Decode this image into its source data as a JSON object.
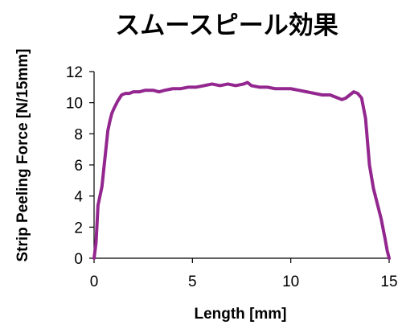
{
  "chart_data": {
    "type": "line",
    "title": "スムースピール効果",
    "xlabel": "Length [mm]",
    "ylabel": "Strip Peeling Force [N/15mm]",
    "xlim": [
      0,
      15
    ],
    "ylim": [
      0,
      12
    ],
    "x_ticks": [
      0,
      5,
      10,
      15
    ],
    "y_ticks": [
      0,
      2,
      4,
      6,
      8,
      10,
      12
    ],
    "grid": false,
    "legend": "none",
    "line_color": "#93278F",
    "series": [
      {
        "x": [
          0,
          0.1,
          0.2,
          0.3,
          0.4,
          0.5,
          0.6,
          0.7,
          0.8,
          0.9,
          1.0,
          1.2,
          1.4,
          1.6,
          1.8,
          2.0,
          2.3,
          2.6,
          3.0,
          3.3,
          3.6,
          4.0,
          4.4,
          4.8,
          5.2,
          5.6,
          6.0,
          6.4,
          6.8,
          7.2,
          7.6,
          7.8,
          8.0,
          8.4,
          8.8,
          9.2,
          9.6,
          10.0,
          10.4,
          10.8,
          11.2,
          11.6,
          12.0,
          12.4,
          12.6,
          12.8,
          13.0,
          13.2,
          13.4,
          13.6,
          13.8,
          14.0,
          14.2,
          14.4,
          14.6,
          14.8,
          14.9,
          15.0
        ],
        "y": [
          0,
          1.0,
          3.4,
          4.0,
          4.6,
          5.8,
          7.0,
          8.2,
          8.8,
          9.3,
          9.6,
          10.1,
          10.5,
          10.6,
          10.6,
          10.7,
          10.7,
          10.8,
          10.8,
          10.7,
          10.8,
          10.9,
          10.9,
          11.0,
          11.0,
          11.1,
          11.2,
          11.1,
          11.2,
          11.1,
          11.2,
          11.3,
          11.1,
          11.0,
          11.0,
          10.9,
          10.9,
          10.9,
          10.8,
          10.7,
          10.6,
          10.5,
          10.5,
          10.3,
          10.2,
          10.3,
          10.5,
          10.7,
          10.6,
          10.3,
          9.0,
          6.0,
          4.5,
          3.5,
          2.5,
          1.2,
          0.5,
          0
        ]
      }
    ]
  }
}
